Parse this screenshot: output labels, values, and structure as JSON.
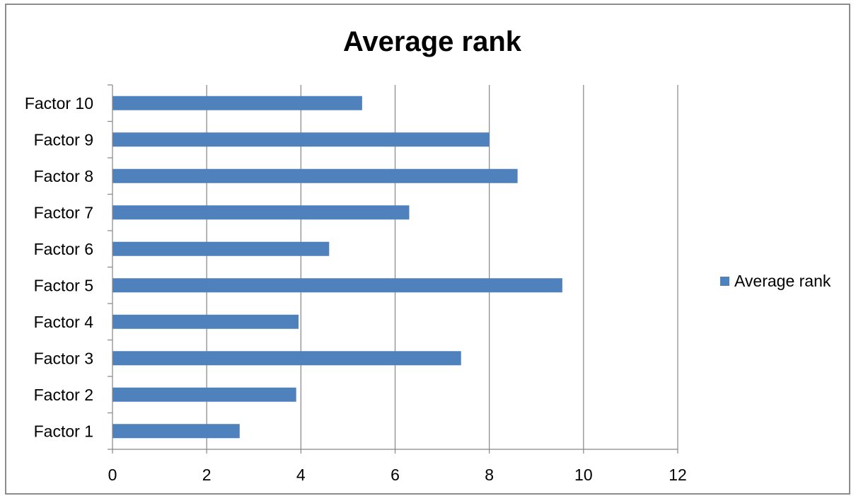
{
  "chart_data": {
    "type": "bar",
    "orientation": "horizontal",
    "title": "Average rank",
    "categories": [
      "Factor 1",
      "Factor 2",
      "Factor 3",
      "Factor 4",
      "Factor 5",
      "Factor 6",
      "Factor 7",
      "Factor 8",
      "Factor 9",
      "Factor 10"
    ],
    "series": [
      {
        "name": "Average rank",
        "color": "#4F81BD",
        "values": [
          2.7,
          3.9,
          7.4,
          3.95,
          9.55,
          4.6,
          6.3,
          8.6,
          8.0,
          5.3
        ]
      }
    ],
    "xlim": [
      0,
      12
    ],
    "xticks": [
      "0",
      "2",
      "4",
      "6",
      "8",
      "10",
      "12"
    ],
    "xlabel": "",
    "ylabel": "",
    "grid": true,
    "gridline_color": "#868686",
    "legend_placement": "right"
  }
}
